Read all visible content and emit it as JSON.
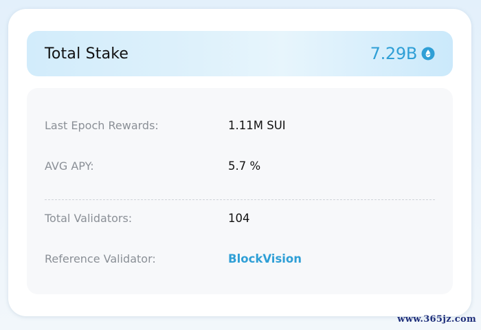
{
  "stake": {
    "title": "Total Stake",
    "value": "7.29B",
    "icon": "sui-drop-icon",
    "accent_color": "#2f9fd6"
  },
  "details": {
    "rows": [
      {
        "label": "Last Epoch Rewards:",
        "value": "1.11M SUI"
      },
      {
        "label": "AVG APY:",
        "value": "5.7 %"
      },
      {
        "label": "Total Validators:",
        "value": "104"
      },
      {
        "label": "Reference Validator:",
        "value": "BlockVision",
        "link_color": "#2f9fd6"
      }
    ]
  },
  "watermark": "www.365jz.com"
}
